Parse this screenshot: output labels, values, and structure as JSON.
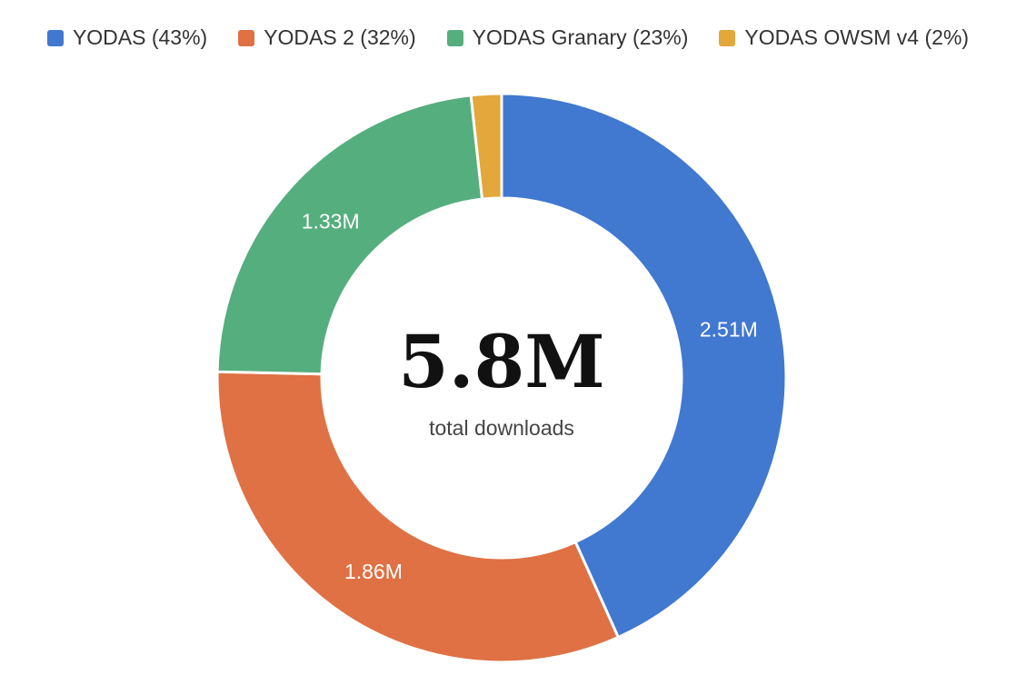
{
  "chart_data": {
    "type": "pie",
    "donut": true,
    "title": "",
    "center_value": "5.8M",
    "center_caption": "total downloads",
    "legend_position": "top",
    "slices": [
      {
        "legend": "YODAS (43%)",
        "value": 2.51,
        "label": "2.51M",
        "percent": 43,
        "color": "#4178D0"
      },
      {
        "legend": "YODAS 2 (32%)",
        "value": 1.86,
        "label": "1.86M",
        "percent": 32,
        "color": "#DF7144"
      },
      {
        "legend": "YODAS Granary (23%)",
        "value": 1.33,
        "label": "1.33M",
        "percent": 23,
        "color": "#55AE7E"
      },
      {
        "legend": "YODAS OWSM v4 (2%)",
        "value": 0.1,
        "label": "",
        "percent": 2,
        "color": "#E3A73B"
      }
    ]
  }
}
